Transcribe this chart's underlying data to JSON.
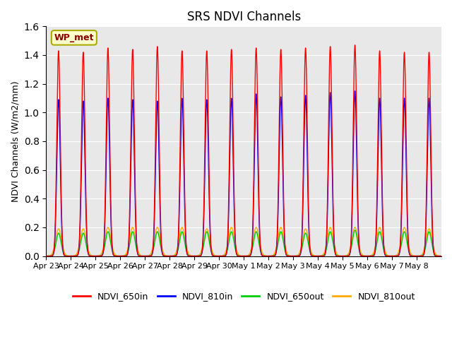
{
  "title": "SRS NDVI Channels",
  "ylabel": "NDVI Channels (W/m2/mm)",
  "annotation": "WP_met",
  "ylim": [
    0,
    1.6
  ],
  "yticks": [
    0.0,
    0.2,
    0.4,
    0.6,
    0.8,
    1.0,
    1.2,
    1.4,
    1.6
  ],
  "colors": {
    "NDVI_650in": "#ff0000",
    "NDVI_810in": "#0000ff",
    "NDVI_650out": "#00cc00",
    "NDVI_810out": "#ffaa00"
  },
  "xtick_labels": [
    "Apr 23",
    "Apr 24",
    "Apr 25",
    "Apr 26",
    "Apr 27",
    "Apr 28",
    "Apr 29",
    "Apr 30",
    "May 1",
    "May 2",
    "May 3",
    "May 4",
    "May 5",
    "May 6",
    "May 7",
    "May 8"
  ],
  "peak_650in": [
    1.43,
    1.42,
    1.45,
    1.44,
    1.46,
    1.43,
    1.43,
    1.44,
    1.45,
    1.44,
    1.45,
    1.46,
    1.47,
    1.43,
    1.42,
    1.42
  ],
  "peak_810in": [
    1.09,
    1.08,
    1.1,
    1.09,
    1.08,
    1.1,
    1.09,
    1.1,
    1.13,
    1.11,
    1.12,
    1.14,
    1.15,
    1.1,
    1.1,
    1.1
  ],
  "peak_650out": [
    0.16,
    0.16,
    0.17,
    0.17,
    0.17,
    0.17,
    0.17,
    0.17,
    0.17,
    0.17,
    0.16,
    0.17,
    0.18,
    0.17,
    0.17,
    0.17
  ],
  "peak_810out": [
    0.19,
    0.19,
    0.2,
    0.2,
    0.2,
    0.2,
    0.19,
    0.2,
    0.2,
    0.2,
    0.19,
    0.2,
    0.2,
    0.2,
    0.2,
    0.19
  ],
  "bg_color": "#e8e8e8",
  "fig_bg": "#ffffff"
}
